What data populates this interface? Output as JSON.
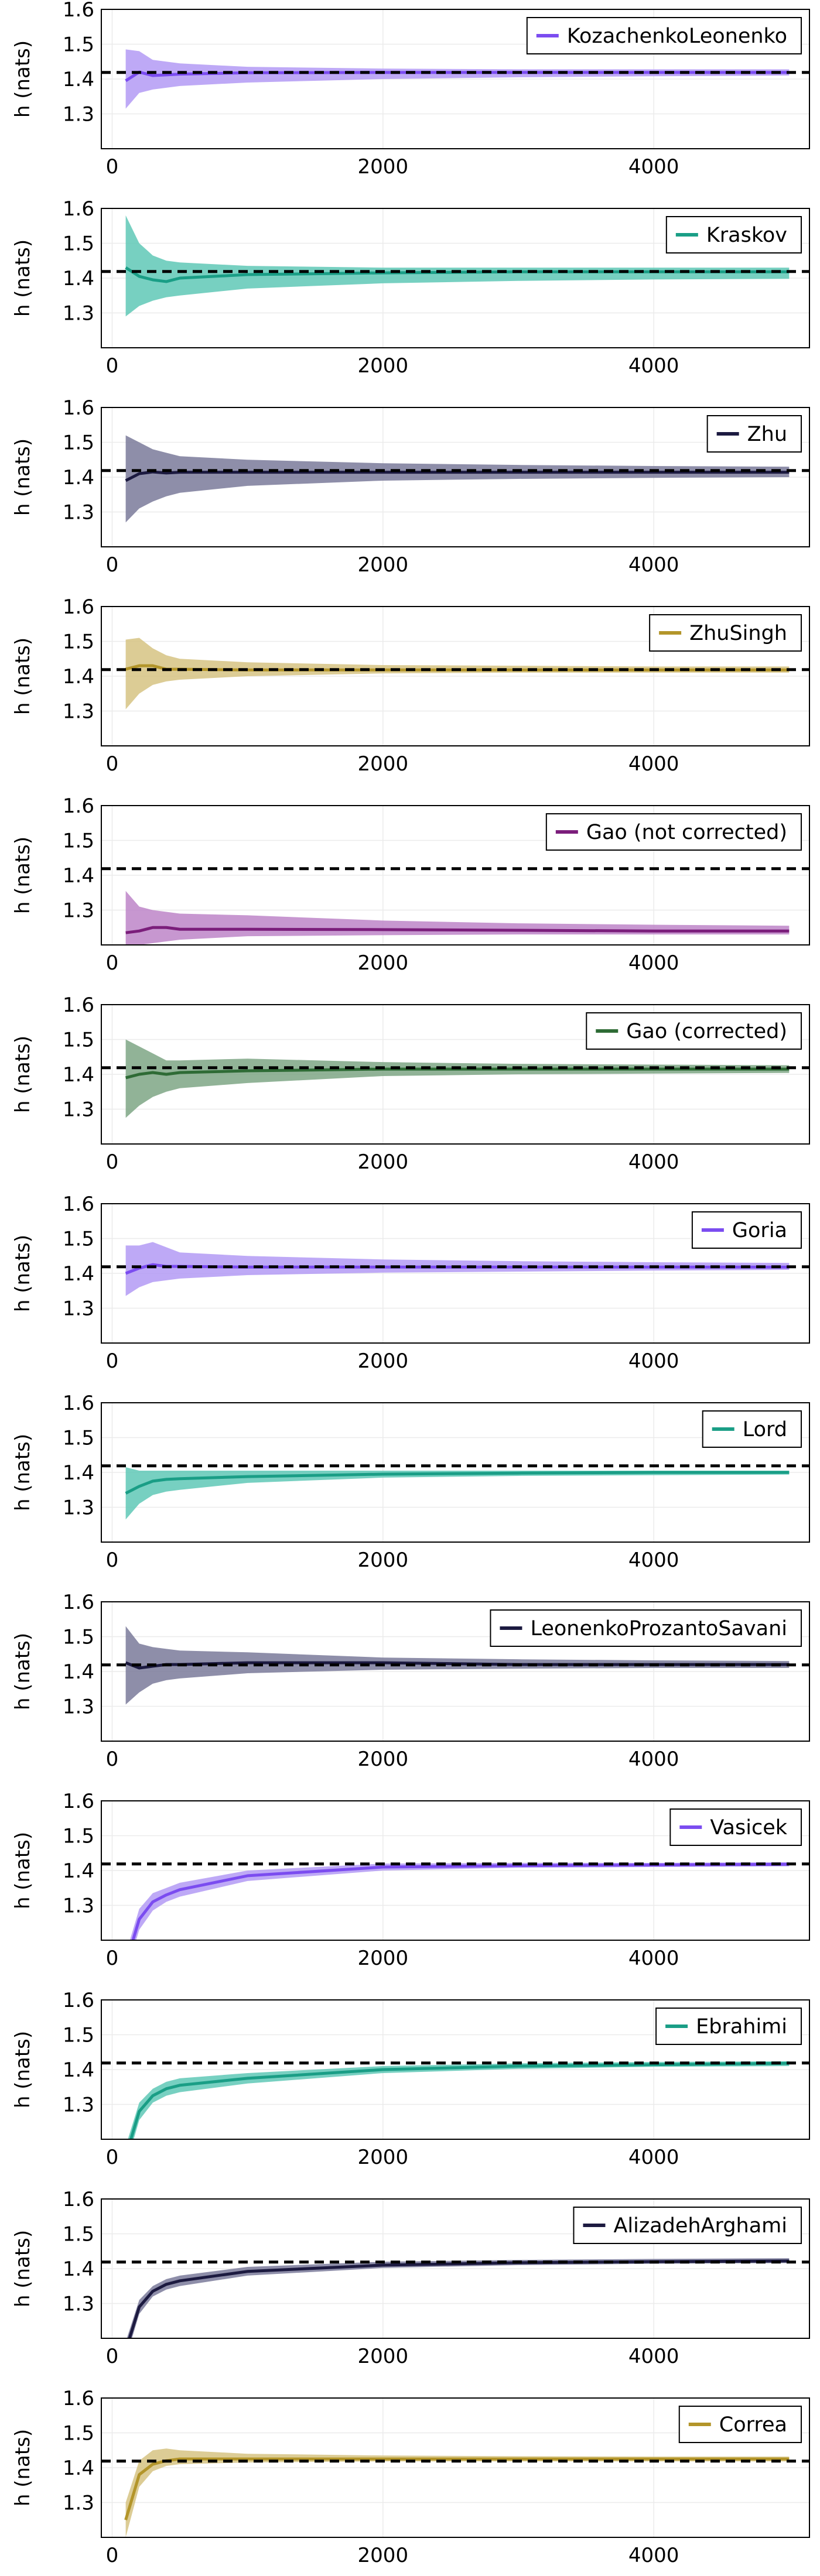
{
  "chart_data": [
    {
      "type": "line",
      "legend": "KozachenkoLeonenko",
      "color": "#7b4cf0",
      "band_color": "#b39af5",
      "ylabel": "h (nats)",
      "xlim": [
        -80,
        5150
      ],
      "ylim": [
        1.2,
        1.6
      ],
      "yticks": [
        "1.3",
        "1.4",
        "1.5",
        "1.6"
      ],
      "xticks": [
        "0",
        "2000",
        "4000"
      ],
      "reference": 1.419,
      "x": [
        100,
        200,
        300,
        400,
        500,
        1000,
        2000,
        3000,
        4000,
        5000
      ],
      "y": [
        1.395,
        1.42,
        1.41,
        1.412,
        1.414,
        1.418,
        1.419,
        1.419,
        1.419,
        1.419
      ],
      "lower": [
        1.315,
        1.36,
        1.37,
        1.375,
        1.38,
        1.39,
        1.4,
        1.405,
        1.408,
        1.41
      ],
      "upper": [
        1.485,
        1.48,
        1.455,
        1.45,
        1.445,
        1.435,
        1.43,
        1.428,
        1.428,
        1.428
      ]
    },
    {
      "type": "line",
      "legend": "Kraskov",
      "color": "#1a9e86",
      "band_color": "#5fc8b6",
      "ylabel": "h (nats)",
      "xlim": [
        -80,
        5150
      ],
      "ylim": [
        1.2,
        1.6
      ],
      "yticks": [
        "1.3",
        "1.4",
        "1.5",
        "1.6"
      ],
      "xticks": [
        "0",
        "2000",
        "4000"
      ],
      "reference": 1.419,
      "x": [
        100,
        200,
        300,
        400,
        500,
        1000,
        2000,
        3000,
        4000,
        5000
      ],
      "y": [
        1.43,
        1.405,
        1.395,
        1.39,
        1.4,
        1.41,
        1.415,
        1.418,
        1.418,
        1.418
      ],
      "lower": [
        1.29,
        1.32,
        1.335,
        1.345,
        1.35,
        1.37,
        1.385,
        1.392,
        1.396,
        1.398
      ],
      "upper": [
        1.58,
        1.5,
        1.465,
        1.45,
        1.445,
        1.435,
        1.43,
        1.43,
        1.43,
        1.43
      ]
    },
    {
      "type": "line",
      "legend": "Zhu",
      "color": "#1c1a40",
      "band_color": "#7a7a9a",
      "ylabel": "h (nats)",
      "xlim": [
        -80,
        5150
      ],
      "ylim": [
        1.2,
        1.6
      ],
      "yticks": [
        "1.3",
        "1.4",
        "1.5",
        "1.6"
      ],
      "xticks": [
        "0",
        "2000",
        "4000"
      ],
      "reference": 1.419,
      "x": [
        100,
        200,
        300,
        400,
        500,
        1000,
        2000,
        3000,
        4000,
        5000
      ],
      "y": [
        1.39,
        1.41,
        1.415,
        1.412,
        1.414,
        1.414,
        1.414,
        1.414,
        1.414,
        1.414
      ],
      "lower": [
        1.27,
        1.31,
        1.33,
        1.345,
        1.355,
        1.375,
        1.39,
        1.395,
        1.398,
        1.4
      ],
      "upper": [
        1.52,
        1.5,
        1.48,
        1.47,
        1.46,
        1.45,
        1.44,
        1.435,
        1.432,
        1.43
      ]
    },
    {
      "type": "line",
      "legend": "ZhuSingh",
      "color": "#b3952a",
      "band_color": "#d6c383",
      "ylabel": "h (nats)",
      "xlim": [
        -80,
        5150
      ],
      "ylim": [
        1.2,
        1.6
      ],
      "yticks": [
        "1.3",
        "1.4",
        "1.5",
        "1.6"
      ],
      "xticks": [
        "0",
        "2000",
        "4000"
      ],
      "reference": 1.419,
      "x": [
        100,
        200,
        300,
        400,
        500,
        1000,
        2000,
        3000,
        4000,
        5000
      ],
      "y": [
        1.42,
        1.43,
        1.43,
        1.42,
        1.42,
        1.418,
        1.418,
        1.418,
        1.418,
        1.418
      ],
      "lower": [
        1.305,
        1.35,
        1.375,
        1.385,
        1.39,
        1.4,
        1.408,
        1.41,
        1.41,
        1.41
      ],
      "upper": [
        1.505,
        1.51,
        1.48,
        1.46,
        1.45,
        1.44,
        1.432,
        1.43,
        1.428,
        1.428
      ]
    },
    {
      "type": "line",
      "legend": "Gao (not corrected)",
      "color": "#7b1e7b",
      "band_color": "#bd85c8",
      "ylabel": "h (nats)",
      "xlim": [
        -80,
        5150
      ],
      "ylim": [
        1.2,
        1.6
      ],
      "yticks": [
        "1.3",
        "1.4",
        "1.5",
        "1.6"
      ],
      "xticks": [
        "0",
        "2000",
        "4000"
      ],
      "reference": 1.419,
      "x": [
        100,
        200,
        300,
        400,
        500,
        1000,
        2000,
        3000,
        4000,
        5000
      ],
      "y": [
        1.235,
        1.24,
        1.25,
        1.25,
        1.245,
        1.245,
        1.244,
        1.242,
        1.24,
        1.24
      ],
      "lower": [
        1.2,
        1.2,
        1.205,
        1.21,
        1.215,
        1.225,
        1.228,
        1.23,
        1.23,
        1.23
      ],
      "upper": [
        1.355,
        1.31,
        1.3,
        1.295,
        1.29,
        1.285,
        1.27,
        1.262,
        1.258,
        1.255
      ]
    },
    {
      "type": "line",
      "legend": "Gao (corrected)",
      "color": "#2e6b35",
      "band_color": "#7ea685",
      "ylabel": "h (nats)",
      "xlim": [
        -80,
        5150
      ],
      "ylim": [
        1.2,
        1.6
      ],
      "yticks": [
        "1.3",
        "1.4",
        "1.5",
        "1.6"
      ],
      "xticks": [
        "0",
        "2000",
        "4000"
      ],
      "reference": 1.419,
      "x": [
        100,
        200,
        300,
        400,
        500,
        1000,
        2000,
        3000,
        4000,
        5000
      ],
      "y": [
        1.39,
        1.4,
        1.405,
        1.4,
        1.405,
        1.41,
        1.415,
        1.415,
        1.415,
        1.415
      ],
      "lower": [
        1.275,
        1.31,
        1.335,
        1.35,
        1.36,
        1.375,
        1.395,
        1.4,
        1.402,
        1.404
      ],
      "upper": [
        1.5,
        1.48,
        1.46,
        1.44,
        1.44,
        1.445,
        1.435,
        1.43,
        1.428,
        1.426
      ]
    },
    {
      "type": "line",
      "legend": "Goria",
      "color": "#7b4cf0",
      "band_color": "#b39af5",
      "ylabel": "h (nats)",
      "xlim": [
        -80,
        5150
      ],
      "ylim": [
        1.2,
        1.6
      ],
      "yticks": [
        "1.3",
        "1.4",
        "1.5",
        "1.6"
      ],
      "xticks": [
        "0",
        "2000",
        "4000"
      ],
      "reference": 1.419,
      "x": [
        100,
        200,
        300,
        400,
        500,
        1000,
        2000,
        3000,
        4000,
        5000
      ],
      "y": [
        1.4,
        1.415,
        1.425,
        1.42,
        1.42,
        1.418,
        1.418,
        1.418,
        1.418,
        1.418
      ],
      "lower": [
        1.335,
        1.36,
        1.375,
        1.38,
        1.385,
        1.395,
        1.402,
        1.405,
        1.408,
        1.41
      ],
      "upper": [
        1.48,
        1.48,
        1.49,
        1.475,
        1.46,
        1.45,
        1.44,
        1.435,
        1.432,
        1.43
      ]
    },
    {
      "type": "line",
      "legend": "Lord",
      "color": "#1a9e86",
      "band_color": "#5fc8b6",
      "ylabel": "h (nats)",
      "xlim": [
        -80,
        5150
      ],
      "ylim": [
        1.2,
        1.6
      ],
      "yticks": [
        "1.3",
        "1.4",
        "1.5",
        "1.6"
      ],
      "xticks": [
        "0",
        "2000",
        "4000"
      ],
      "reference": 1.419,
      "x": [
        100,
        200,
        300,
        400,
        500,
        1000,
        2000,
        3000,
        4000,
        5000
      ],
      "y": [
        1.34,
        1.36,
        1.375,
        1.38,
        1.382,
        1.388,
        1.395,
        1.398,
        1.4,
        1.4
      ],
      "lower": [
        1.265,
        1.31,
        1.335,
        1.345,
        1.35,
        1.37,
        1.385,
        1.39,
        1.392,
        1.394
      ],
      "upper": [
        1.415,
        1.405,
        1.405,
        1.405,
        1.405,
        1.405,
        1.405,
        1.405,
        1.405,
        1.405
      ]
    },
    {
      "type": "line",
      "legend": "LeonenkoProzantoSavani",
      "color": "#1c1a40",
      "band_color": "#7a7a9a",
      "ylabel": "h (nats)",
      "xlim": [
        -80,
        5150
      ],
      "ylim": [
        1.2,
        1.6
      ],
      "yticks": [
        "1.3",
        "1.4",
        "1.5",
        "1.6"
      ],
      "xticks": [
        "0",
        "2000",
        "4000"
      ],
      "reference": 1.419,
      "x": [
        100,
        200,
        300,
        400,
        500,
        1000,
        2000,
        3000,
        4000,
        5000
      ],
      "y": [
        1.425,
        1.41,
        1.415,
        1.42,
        1.42,
        1.425,
        1.425,
        1.42,
        1.42,
        1.42
      ],
      "lower": [
        1.305,
        1.34,
        1.365,
        1.375,
        1.38,
        1.395,
        1.405,
        1.408,
        1.41,
        1.41
      ],
      "upper": [
        1.53,
        1.48,
        1.47,
        1.465,
        1.46,
        1.455,
        1.44,
        1.435,
        1.432,
        1.43
      ]
    },
    {
      "type": "line",
      "legend": "Vasicek",
      "color": "#7b4cf0",
      "band_color": "#b39af5",
      "ylabel": "h (nats)",
      "xlim": [
        -80,
        5150
      ],
      "ylim": [
        1.2,
        1.6
      ],
      "yticks": [
        "1.3",
        "1.4",
        "1.5",
        "1.6"
      ],
      "xticks": [
        "0",
        "2000",
        "4000"
      ],
      "reference": 1.419,
      "x": [
        100,
        200,
        300,
        400,
        500,
        1000,
        2000,
        3000,
        4000,
        5000
      ],
      "y": [
        1.13,
        1.26,
        1.31,
        1.33,
        1.345,
        1.385,
        1.41,
        1.414,
        1.416,
        1.418
      ],
      "lower": [
        1.1,
        1.23,
        1.285,
        1.31,
        1.325,
        1.37,
        1.4,
        1.408,
        1.41,
        1.412
      ],
      "upper": [
        1.16,
        1.29,
        1.335,
        1.35,
        1.365,
        1.4,
        1.42,
        1.422,
        1.422,
        1.424
      ]
    },
    {
      "type": "line",
      "legend": "Ebrahimi",
      "color": "#1a9e86",
      "band_color": "#5fc8b6",
      "ylabel": "h (nats)",
      "xlim": [
        -80,
        5150
      ],
      "ylim": [
        1.2,
        1.6
      ],
      "yticks": [
        "1.3",
        "1.4",
        "1.5",
        "1.6"
      ],
      "xticks": [
        "0",
        "2000",
        "4000"
      ],
      "reference": 1.419,
      "x": [
        100,
        200,
        300,
        400,
        500,
        1000,
        2000,
        3000,
        4000,
        5000
      ],
      "y": [
        1.15,
        1.28,
        1.325,
        1.345,
        1.355,
        1.375,
        1.4,
        1.41,
        1.414,
        1.418
      ],
      "lower": [
        1.12,
        1.255,
        1.305,
        1.325,
        1.335,
        1.36,
        1.39,
        1.402,
        1.408,
        1.41
      ],
      "upper": [
        1.18,
        1.305,
        1.345,
        1.365,
        1.375,
        1.39,
        1.41,
        1.418,
        1.422,
        1.424
      ]
    },
    {
      "type": "line",
      "legend": "AlizadehArghami",
      "color": "#1c1a40",
      "band_color": "#7a7a9a",
      "ylabel": "h (nats)",
      "xlim": [
        -80,
        5150
      ],
      "ylim": [
        1.2,
        1.6
      ],
      "yticks": [
        "1.3",
        "1.4",
        "1.5",
        "1.6"
      ],
      "xticks": [
        "0",
        "2000",
        "4000"
      ],
      "reference": 1.419,
      "x": [
        100,
        200,
        300,
        400,
        500,
        1000,
        2000,
        3000,
        4000,
        5000
      ],
      "y": [
        1.165,
        1.29,
        1.335,
        1.355,
        1.365,
        1.392,
        1.41,
        1.417,
        1.42,
        1.422
      ],
      "lower": [
        1.14,
        1.27,
        1.32,
        1.34,
        1.35,
        1.38,
        1.402,
        1.41,
        1.414,
        1.416
      ],
      "upper": [
        1.19,
        1.31,
        1.35,
        1.37,
        1.38,
        1.405,
        1.42,
        1.425,
        1.428,
        1.43
      ]
    },
    {
      "type": "line",
      "legend": "Correa",
      "color": "#b3952a",
      "band_color": "#d6c383",
      "ylabel": "h (nats)",
      "xlim": [
        -80,
        5150
      ],
      "ylim": [
        1.2,
        1.6
      ],
      "yticks": [
        "1.3",
        "1.4",
        "1.5",
        "1.6"
      ],
      "xticks": [
        "0",
        "2000",
        "4000"
      ],
      "reference": 1.419,
      "x": [
        100,
        200,
        300,
        400,
        500,
        1000,
        2000,
        3000,
        4000,
        5000
      ],
      "y": [
        1.25,
        1.38,
        1.41,
        1.42,
        1.425,
        1.425,
        1.425,
        1.425,
        1.425,
        1.425
      ],
      "lower": [
        1.2,
        1.345,
        1.39,
        1.405,
        1.41,
        1.415,
        1.418,
        1.418,
        1.418,
        1.418
      ],
      "upper": [
        1.3,
        1.42,
        1.45,
        1.455,
        1.45,
        1.44,
        1.435,
        1.433,
        1.432,
        1.432
      ]
    }
  ]
}
